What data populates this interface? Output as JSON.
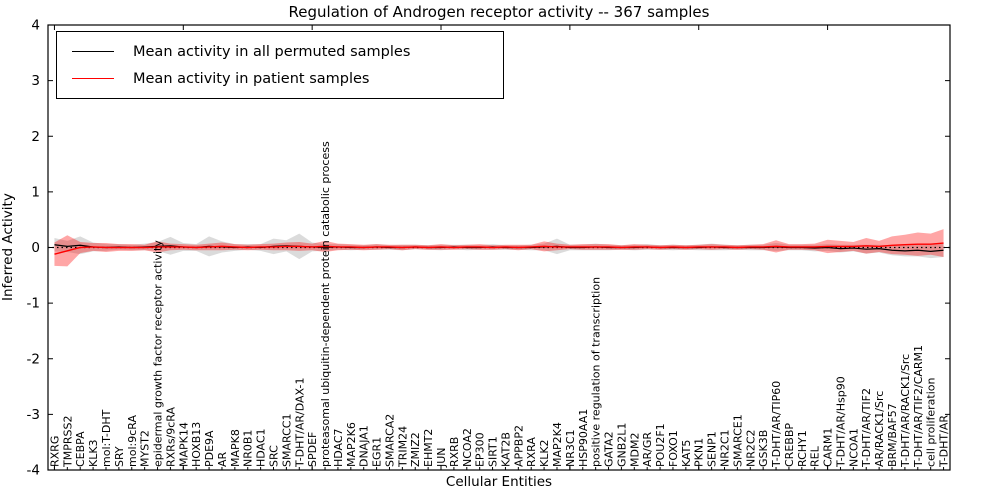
{
  "chart_data": {
    "type": "line",
    "title": "Regulation of Androgen receptor activity -- 367 samples",
    "xlabel": "Cellular Entities",
    "ylabel": "Inferred Activity",
    "ylim": [
      -4,
      4
    ],
    "y_ticks": [
      4,
      3,
      2,
      1,
      0,
      -1,
      -2,
      -3,
      -4
    ],
    "grid": false,
    "legend_position": "upper left",
    "zero_line": {
      "style": "dotted",
      "color": "#000000",
      "y": 0
    },
    "categories": [
      "RXRG",
      "TMPRSS2",
      "CEBPA",
      "KLK3",
      "mol:T-DHT",
      "SRY",
      "mol:9cRA",
      "MYST2",
      "epidermal growth factor receptor activity",
      "RXRs/9cRA",
      "MAPK14",
      "HOXB13",
      "PDE9A",
      "AR",
      "MAPK8",
      "NR0B1",
      "HDAC1",
      "SRC",
      "SMARCC1",
      "T-DHT/AR/DAX-1",
      "SPDEF",
      "proteasomal ubiquitin-dependent protein catabolic process",
      "HDAC7",
      "MAP2K6",
      "DNAJA1",
      "EGR1",
      "SMARCA2",
      "TRIM24",
      "ZMIZ2",
      "EHMT2",
      "JUN",
      "RXRB",
      "NCOA2",
      "EP300",
      "SIRT1",
      "KAT2B",
      "APPBP2",
      "RXRA",
      "KLK2",
      "MAP2K4",
      "NR3C1",
      "HSP90AA1",
      "positive regulation of transcription",
      "GATA2",
      "GNB2L1",
      "MDM2",
      "AR/GR",
      "POU2F1",
      "FOXO1",
      "KAT5",
      "PKN1",
      "SENP1",
      "NR2C1",
      "SMARCE1",
      "NR2C2",
      "GSK3B",
      "T-DHT/AR/TIP60",
      "CREBBP",
      "RCHY1",
      "REL",
      "CARM1",
      "T-DHT/AR/Hsp90",
      "NCOA1",
      "T-DHT/AR/TIF2",
      "AR/RACK1/Src",
      "BRM/BAF57",
      "T-DHT/AR/RACK1/Src",
      "T-DHT/AR/TIF2/CARM1",
      "cell proliferation",
      "T-DHT/AR"
    ],
    "series": [
      {
        "name": "Mean activity in all permuted samples",
        "color": "#000000",
        "band_color": "#999999",
        "band_opacity": 0.35,
        "values": [
          0.05,
          0.02,
          0.04,
          0.01,
          0.0,
          0.01,
          0.0,
          0.01,
          0.02,
          0.03,
          0.01,
          0.0,
          0.02,
          0.01,
          0.0,
          0.01,
          0.0,
          0.02,
          0.03,
          0.02,
          0.01,
          0.0,
          0.01,
          0.0,
          0.0,
          0.01,
          0.0,
          0.0,
          0.01,
          0.0,
          0.0,
          0.01,
          0.0,
          0.0,
          0.01,
          0.0,
          0.0,
          0.0,
          0.01,
          0.02,
          0.0,
          0.0,
          0.01,
          0.0,
          0.0,
          0.0,
          0.01,
          0.0,
          0.0,
          0.0,
          0.0,
          0.01,
          0.0,
          0.0,
          0.0,
          0.0,
          0.01,
          0.0,
          0.0,
          -0.01,
          0.0,
          -0.02,
          -0.01,
          -0.03,
          -0.02,
          -0.05,
          -0.06,
          -0.05,
          -0.07,
          -0.05
        ],
        "band": [
          0.12,
          0.1,
          0.16,
          0.08,
          0.06,
          0.05,
          0.05,
          0.06,
          0.08,
          0.16,
          0.07,
          0.06,
          0.18,
          0.1,
          0.06,
          0.05,
          0.06,
          0.14,
          0.1,
          0.23,
          0.08,
          0.06,
          0.05,
          0.05,
          0.04,
          0.05,
          0.04,
          0.05,
          0.04,
          0.04,
          0.05,
          0.04,
          0.05,
          0.04,
          0.05,
          0.04,
          0.04,
          0.05,
          0.06,
          0.14,
          0.05,
          0.05,
          0.06,
          0.05,
          0.04,
          0.05,
          0.05,
          0.04,
          0.05,
          0.04,
          0.05,
          0.06,
          0.05,
          0.04,
          0.05,
          0.05,
          0.07,
          0.05,
          0.05,
          0.06,
          0.06,
          0.07,
          0.06,
          0.08,
          0.07,
          0.09,
          0.1,
          0.11,
          0.12,
          0.12
        ]
      },
      {
        "name": "Mean activity in patient samples",
        "color": "#ff0000",
        "band_color": "#ff0000",
        "band_opacity": 0.35,
        "values": [
          -0.12,
          -0.06,
          0.0,
          0.01,
          0.0,
          0.0,
          0.0,
          0.0,
          0.01,
          0.01,
          0.01,
          0.0,
          0.01,
          0.02,
          0.01,
          0.0,
          0.01,
          0.01,
          0.02,
          0.02,
          0.01,
          0.02,
          0.01,
          0.01,
          0.0,
          0.01,
          0.01,
          0.0,
          0.01,
          0.0,
          0.01,
          0.0,
          0.01,
          0.01,
          0.0,
          0.01,
          0.0,
          0.01,
          0.02,
          0.01,
          0.01,
          0.01,
          0.01,
          0.01,
          0.0,
          0.01,
          0.01,
          0.0,
          0.01,
          0.0,
          0.01,
          0.01,
          0.01,
          0.0,
          0.01,
          0.01,
          0.02,
          0.01,
          0.01,
          0.01,
          0.02,
          0.02,
          0.02,
          0.03,
          0.02,
          0.04,
          0.05,
          0.06,
          0.06,
          0.08
        ],
        "band": [
          0.21,
          0.28,
          0.1,
          0.07,
          0.08,
          0.06,
          0.06,
          0.05,
          0.1,
          0.06,
          0.05,
          0.05,
          0.06,
          0.07,
          0.05,
          0.05,
          0.05,
          0.06,
          0.07,
          0.08,
          0.06,
          0.1,
          0.06,
          0.05,
          0.05,
          0.05,
          0.04,
          0.05,
          0.04,
          0.04,
          0.05,
          0.04,
          0.04,
          0.05,
          0.04,
          0.04,
          0.05,
          0.04,
          0.09,
          0.06,
          0.04,
          0.05,
          0.05,
          0.05,
          0.04,
          0.05,
          0.04,
          0.04,
          0.04,
          0.04,
          0.04,
          0.05,
          0.04,
          0.04,
          0.04,
          0.05,
          0.11,
          0.05,
          0.05,
          0.06,
          0.12,
          0.1,
          0.08,
          0.14,
          0.1,
          0.16,
          0.18,
          0.21,
          0.19,
          0.25
        ]
      }
    ]
  }
}
